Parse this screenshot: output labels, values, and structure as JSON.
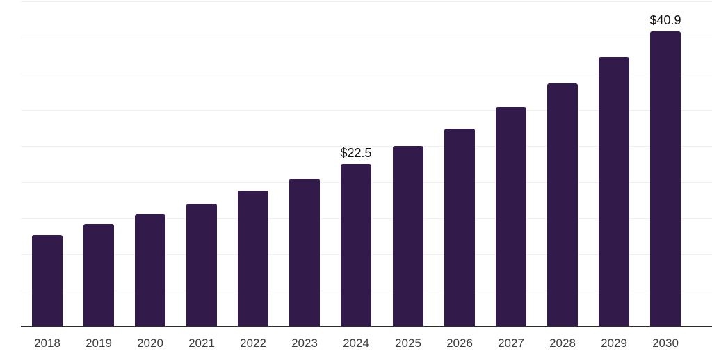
{
  "chart_data": {
    "type": "bar",
    "title": "",
    "xlabel": "",
    "ylabel": "",
    "categories": [
      "2018",
      "2019",
      "2020",
      "2021",
      "2022",
      "2023",
      "2024",
      "2025",
      "2026",
      "2027",
      "2028",
      "2029",
      "2030"
    ],
    "values": [
      12.7,
      14.2,
      15.6,
      17.0,
      18.8,
      20.5,
      22.5,
      25.0,
      27.4,
      30.4,
      33.7,
      37.3,
      40.9
    ],
    "data_labels": [
      "",
      "",
      "",
      "",
      "",
      "",
      "$22.5",
      "",
      "",
      "",
      "",
      "",
      "$40.9"
    ],
    "ylim": [
      0,
      45.2
    ],
    "grid": "horizontal",
    "grid_step": 5,
    "legend_position": "none",
    "colors": {
      "bar": "#321A4A",
      "gridline": "#f0f0f0",
      "axis_line": "#2d2d2d",
      "tick_label": "#3d3d3d",
      "data_label": "#111111",
      "background": "#ffffff"
    }
  }
}
